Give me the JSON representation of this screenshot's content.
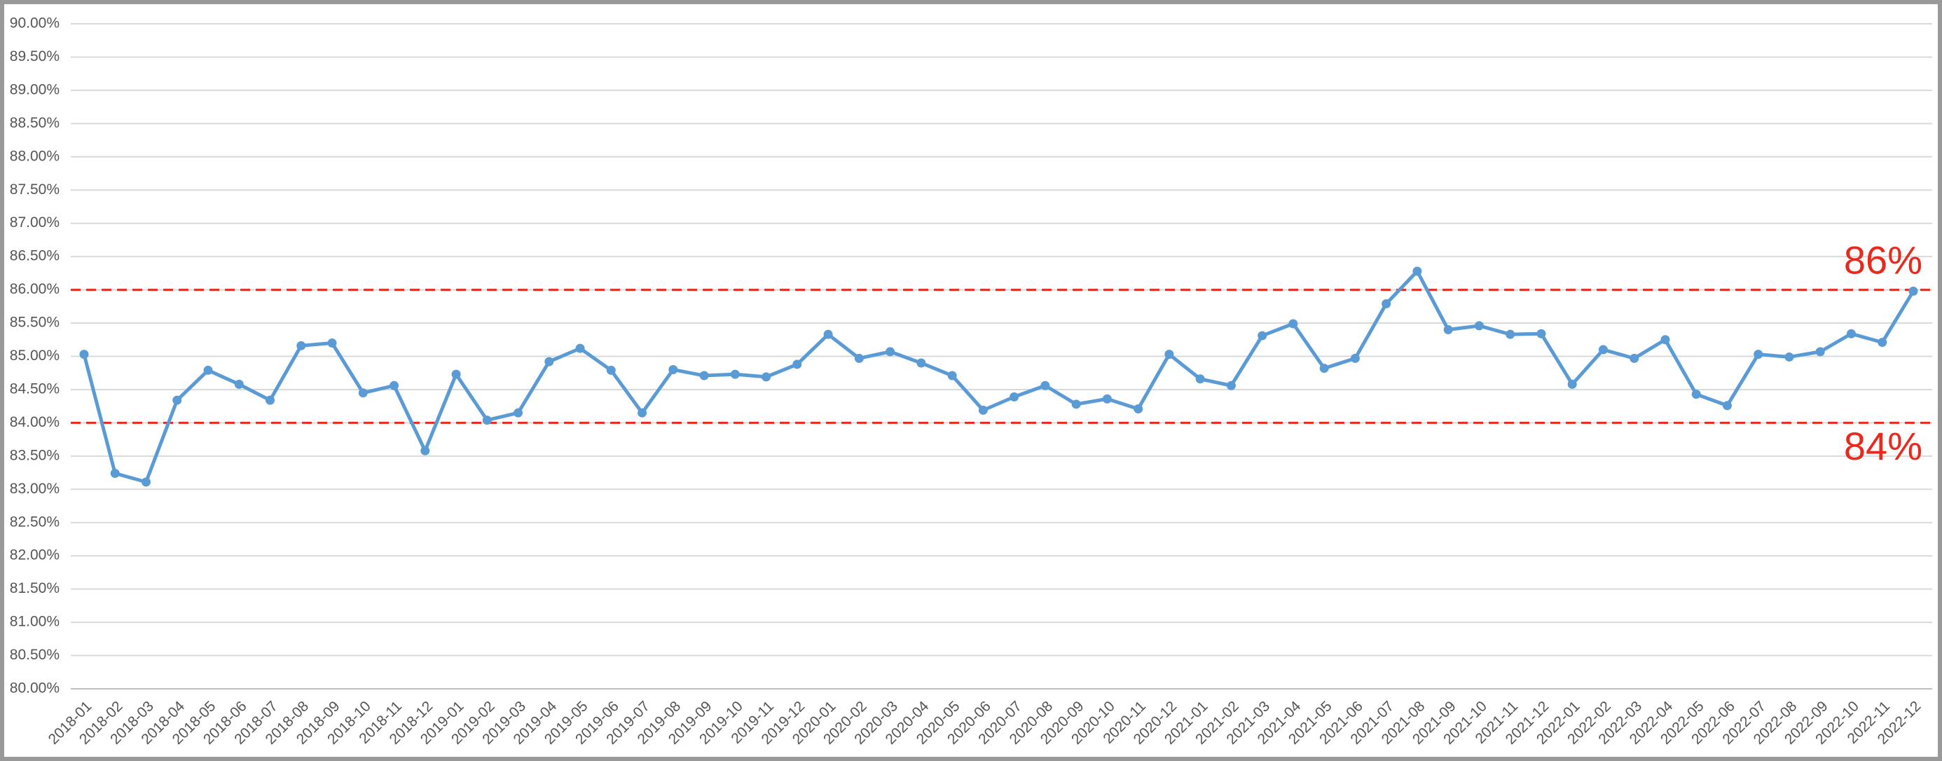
{
  "chart_data": {
    "type": "line",
    "categories": [
      "2018-01",
      "2018-02",
      "2018-03",
      "2018-04",
      "2018-05",
      "2018-06",
      "2018-07",
      "2018-08",
      "2018-09",
      "2018-10",
      "2018-11",
      "2018-12",
      "2019-01",
      "2019-02",
      "2019-03",
      "2019-04",
      "2019-05",
      "2019-06",
      "2019-07",
      "2019-08",
      "2019-09",
      "2019-10",
      "2019-11",
      "2019-12",
      "2020-01",
      "2020-02",
      "2020-03",
      "2020-04",
      "2020-05",
      "2020-06",
      "2020-07",
      "2020-08",
      "2020-09",
      "2020-10",
      "2020-11",
      "2020-12",
      "2021-01",
      "2021-02",
      "2021-03",
      "2021-04",
      "2021-05",
      "2021-06",
      "2021-07",
      "2021-08",
      "2021-09",
      "2021-10",
      "2021-11",
      "2021-12",
      "2022-01",
      "2022-02",
      "2022-03",
      "2022-04",
      "2022-05",
      "2022-06",
      "2022-07",
      "2022-08",
      "2022-09",
      "2022-10",
      "2022-11",
      "2022-12"
    ],
    "series": [
      {
        "color": "#5b9bd5",
        "values": [
          85.03,
          83.24,
          83.11,
          84.34,
          84.79,
          84.58,
          84.34,
          85.16,
          85.2,
          84.45,
          84.56,
          83.58,
          84.73,
          84.04,
          84.15,
          84.92,
          85.12,
          84.79,
          84.15,
          84.8,
          84.71,
          84.73,
          84.69,
          84.88,
          85.33,
          84.97,
          85.07,
          84.9,
          84.71,
          84.19,
          84.39,
          84.56,
          84.28,
          84.36,
          84.21,
          85.03,
          84.66,
          84.56,
          85.31,
          85.49,
          84.82,
          84.97,
          85.79,
          86.28,
          85.4,
          85.46,
          85.33,
          85.34,
          84.58,
          85.1,
          84.97,
          85.25,
          84.43,
          84.26,
          85.03,
          84.99,
          85.07,
          85.34,
          85.21,
          85.98
        ]
      }
    ],
    "ylim": [
      80,
      90
    ],
    "yticks": [
      {
        "value": 80,
        "label": "80.00%"
      },
      {
        "value": 80.5,
        "label": "80.50%"
      },
      {
        "value": 81,
        "label": "81.00%"
      },
      {
        "value": 81.5,
        "label": "81.50%"
      },
      {
        "value": 82,
        "label": "82.00%"
      },
      {
        "value": 82.5,
        "label": "82.50%"
      },
      {
        "value": 83,
        "label": "83.00%"
      },
      {
        "value": 83.5,
        "label": "83.50%"
      },
      {
        "value": 84,
        "label": "84.00%"
      },
      {
        "value": 84.5,
        "label": "84.50%"
      },
      {
        "value": 85,
        "label": "85.00%"
      },
      {
        "value": 85.5,
        "label": "85.50%"
      },
      {
        "value": 86,
        "label": "86.00%"
      },
      {
        "value": 86.5,
        "label": "86.50%"
      },
      {
        "value": 87,
        "label": "87.00%"
      },
      {
        "value": 87.5,
        "label": "87.50%"
      },
      {
        "value": 88,
        "label": "88.00%"
      },
      {
        "value": 88.5,
        "label": "88.50%"
      },
      {
        "value": 89,
        "label": "89.00%"
      },
      {
        "value": 89.5,
        "label": "89.50%"
      },
      {
        "value": 90,
        "label": "90.00%"
      }
    ],
    "grid": true,
    "reference_lines": [
      {
        "value": 86,
        "label": "86%",
        "color": "#e8291c"
      },
      {
        "value": 84,
        "label": "84%",
        "color": "#e8291c"
      }
    ]
  }
}
